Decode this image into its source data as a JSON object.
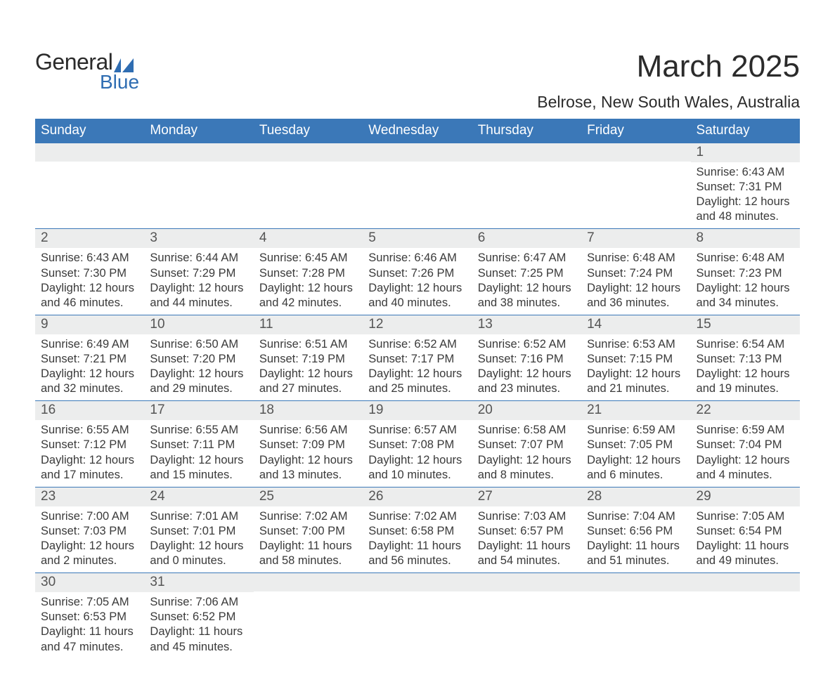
{
  "brand": {
    "word1": "General",
    "word2": "Blue",
    "accent_color": "#2f6db2"
  },
  "title": "March 2025",
  "location": "Belrose, New South Wales, Australia",
  "header_bg": "#3b78b8",
  "header_fg": "#ffffff",
  "daybar_bg": "#eceded",
  "row_border": "#3b78b8",
  "text_color": "#3a3a3a",
  "weekdays": [
    "Sunday",
    "Monday",
    "Tuesday",
    "Wednesday",
    "Thursday",
    "Friday",
    "Saturday"
  ],
  "labels": {
    "sunrise": "Sunrise:",
    "sunset": "Sunset:",
    "daylight": "Daylight:"
  },
  "weeks": [
    [
      {
        "n": "",
        "sunrise": "",
        "sunset": "",
        "daylight": ""
      },
      {
        "n": "",
        "sunrise": "",
        "sunset": "",
        "daylight": ""
      },
      {
        "n": "",
        "sunrise": "",
        "sunset": "",
        "daylight": ""
      },
      {
        "n": "",
        "sunrise": "",
        "sunset": "",
        "daylight": ""
      },
      {
        "n": "",
        "sunrise": "",
        "sunset": "",
        "daylight": ""
      },
      {
        "n": "",
        "sunrise": "",
        "sunset": "",
        "daylight": ""
      },
      {
        "n": "1",
        "sunrise": "6:43 AM",
        "sunset": "7:31 PM",
        "daylight": "12 hours and 48 minutes."
      }
    ],
    [
      {
        "n": "2",
        "sunrise": "6:43 AM",
        "sunset": "7:30 PM",
        "daylight": "12 hours and 46 minutes."
      },
      {
        "n": "3",
        "sunrise": "6:44 AM",
        "sunset": "7:29 PM",
        "daylight": "12 hours and 44 minutes."
      },
      {
        "n": "4",
        "sunrise": "6:45 AM",
        "sunset": "7:28 PM",
        "daylight": "12 hours and 42 minutes."
      },
      {
        "n": "5",
        "sunrise": "6:46 AM",
        "sunset": "7:26 PM",
        "daylight": "12 hours and 40 minutes."
      },
      {
        "n": "6",
        "sunrise": "6:47 AM",
        "sunset": "7:25 PM",
        "daylight": "12 hours and 38 minutes."
      },
      {
        "n": "7",
        "sunrise": "6:48 AM",
        "sunset": "7:24 PM",
        "daylight": "12 hours and 36 minutes."
      },
      {
        "n": "8",
        "sunrise": "6:48 AM",
        "sunset": "7:23 PM",
        "daylight": "12 hours and 34 minutes."
      }
    ],
    [
      {
        "n": "9",
        "sunrise": "6:49 AM",
        "sunset": "7:21 PM",
        "daylight": "12 hours and 32 minutes."
      },
      {
        "n": "10",
        "sunrise": "6:50 AM",
        "sunset": "7:20 PM",
        "daylight": "12 hours and 29 minutes."
      },
      {
        "n": "11",
        "sunrise": "6:51 AM",
        "sunset": "7:19 PM",
        "daylight": "12 hours and 27 minutes."
      },
      {
        "n": "12",
        "sunrise": "6:52 AM",
        "sunset": "7:17 PM",
        "daylight": "12 hours and 25 minutes."
      },
      {
        "n": "13",
        "sunrise": "6:52 AM",
        "sunset": "7:16 PM",
        "daylight": "12 hours and 23 minutes."
      },
      {
        "n": "14",
        "sunrise": "6:53 AM",
        "sunset": "7:15 PM",
        "daylight": "12 hours and 21 minutes."
      },
      {
        "n": "15",
        "sunrise": "6:54 AM",
        "sunset": "7:13 PM",
        "daylight": "12 hours and 19 minutes."
      }
    ],
    [
      {
        "n": "16",
        "sunrise": "6:55 AM",
        "sunset": "7:12 PM",
        "daylight": "12 hours and 17 minutes."
      },
      {
        "n": "17",
        "sunrise": "6:55 AM",
        "sunset": "7:11 PM",
        "daylight": "12 hours and 15 minutes."
      },
      {
        "n": "18",
        "sunrise": "6:56 AM",
        "sunset": "7:09 PM",
        "daylight": "12 hours and 13 minutes."
      },
      {
        "n": "19",
        "sunrise": "6:57 AM",
        "sunset": "7:08 PM",
        "daylight": "12 hours and 10 minutes."
      },
      {
        "n": "20",
        "sunrise": "6:58 AM",
        "sunset": "7:07 PM",
        "daylight": "12 hours and 8 minutes."
      },
      {
        "n": "21",
        "sunrise": "6:59 AM",
        "sunset": "7:05 PM",
        "daylight": "12 hours and 6 minutes."
      },
      {
        "n": "22",
        "sunrise": "6:59 AM",
        "sunset": "7:04 PM",
        "daylight": "12 hours and 4 minutes."
      }
    ],
    [
      {
        "n": "23",
        "sunrise": "7:00 AM",
        "sunset": "7:03 PM",
        "daylight": "12 hours and 2 minutes."
      },
      {
        "n": "24",
        "sunrise": "7:01 AM",
        "sunset": "7:01 PM",
        "daylight": "12 hours and 0 minutes."
      },
      {
        "n": "25",
        "sunrise": "7:02 AM",
        "sunset": "7:00 PM",
        "daylight": "11 hours and 58 minutes."
      },
      {
        "n": "26",
        "sunrise": "7:02 AM",
        "sunset": "6:58 PM",
        "daylight": "11 hours and 56 minutes."
      },
      {
        "n": "27",
        "sunrise": "7:03 AM",
        "sunset": "6:57 PM",
        "daylight": "11 hours and 54 minutes."
      },
      {
        "n": "28",
        "sunrise": "7:04 AM",
        "sunset": "6:56 PM",
        "daylight": "11 hours and 51 minutes."
      },
      {
        "n": "29",
        "sunrise": "7:05 AM",
        "sunset": "6:54 PM",
        "daylight": "11 hours and 49 minutes."
      }
    ],
    [
      {
        "n": "30",
        "sunrise": "7:05 AM",
        "sunset": "6:53 PM",
        "daylight": "11 hours and 47 minutes."
      },
      {
        "n": "31",
        "sunrise": "7:06 AM",
        "sunset": "6:52 PM",
        "daylight": "11 hours and 45 minutes."
      },
      {
        "n": "",
        "sunrise": "",
        "sunset": "",
        "daylight": ""
      },
      {
        "n": "",
        "sunrise": "",
        "sunset": "",
        "daylight": ""
      },
      {
        "n": "",
        "sunrise": "",
        "sunset": "",
        "daylight": ""
      },
      {
        "n": "",
        "sunrise": "",
        "sunset": "",
        "daylight": ""
      },
      {
        "n": "",
        "sunrise": "",
        "sunset": "",
        "daylight": ""
      }
    ]
  ]
}
